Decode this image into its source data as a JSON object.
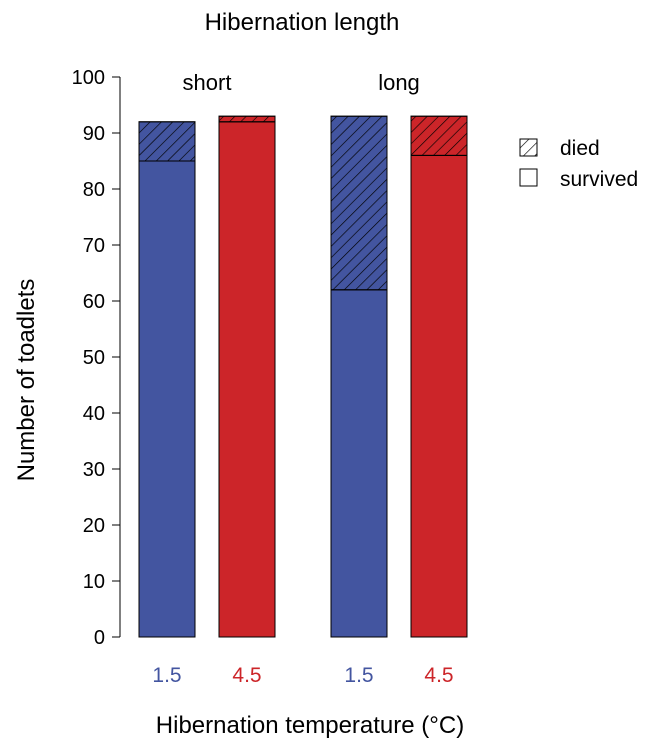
{
  "chart_data": {
    "type": "bar",
    "title": "Hibernation length",
    "xlabel": "Hibernation temperature (°C)",
    "ylabel": "Number of toadlets",
    "ylim": [
      0,
      100
    ],
    "yticks": [
      "0",
      "10",
      "20",
      "30",
      "40",
      "50",
      "60",
      "70",
      "80",
      "90",
      "100"
    ],
    "groups": [
      {
        "label": "short",
        "bars": [
          {
            "temperature": "1.5",
            "survived": 85,
            "died": 7,
            "color": "#4355A0"
          },
          {
            "temperature": "4.5",
            "survived": 92,
            "died": 1,
            "color": "#CC2529"
          }
        ]
      },
      {
        "label": "long",
        "bars": [
          {
            "temperature": "1.5",
            "survived": 62,
            "died": 31,
            "color": "#4355A0"
          },
          {
            "temperature": "4.5",
            "survived": 86,
            "died": 7,
            "color": "#CC2529"
          }
        ]
      }
    ],
    "legend": {
      "position": "right",
      "entries": [
        {
          "label": "died",
          "pattern": "hatched"
        },
        {
          "label": "survived",
          "pattern": "empty"
        }
      ]
    },
    "grid": false
  }
}
